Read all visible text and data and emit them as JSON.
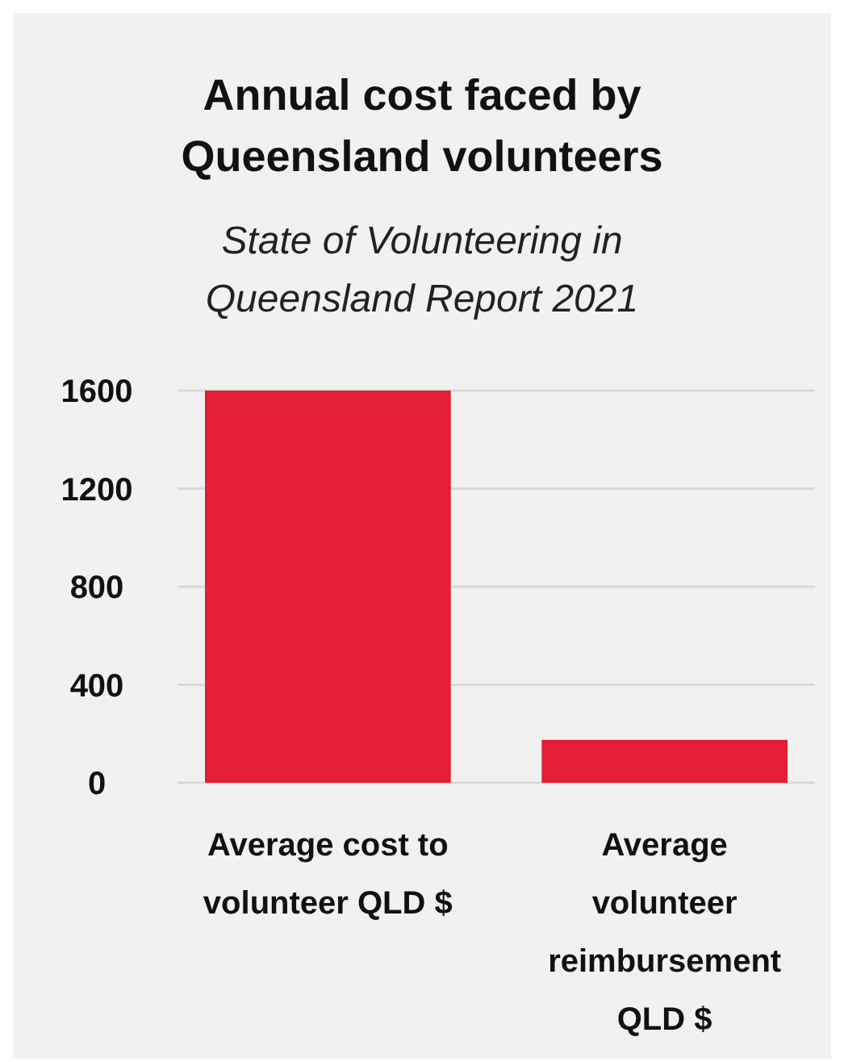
{
  "chart_data": {
    "type": "bar",
    "title": "Annual cost faced by Queensland volunteers",
    "subtitle": "State of Volunteering in Queensland Report 2021",
    "categories": [
      "Average cost to volunteer QLD $",
      "Average volunteer reimbursement QLD $"
    ],
    "values": [
      1600,
      175
    ],
    "color": "#e31e35",
    "ylim": [
      0,
      1600
    ],
    "yticks": [
      0,
      400,
      800,
      1200,
      1600
    ],
    "grid": "y"
  }
}
